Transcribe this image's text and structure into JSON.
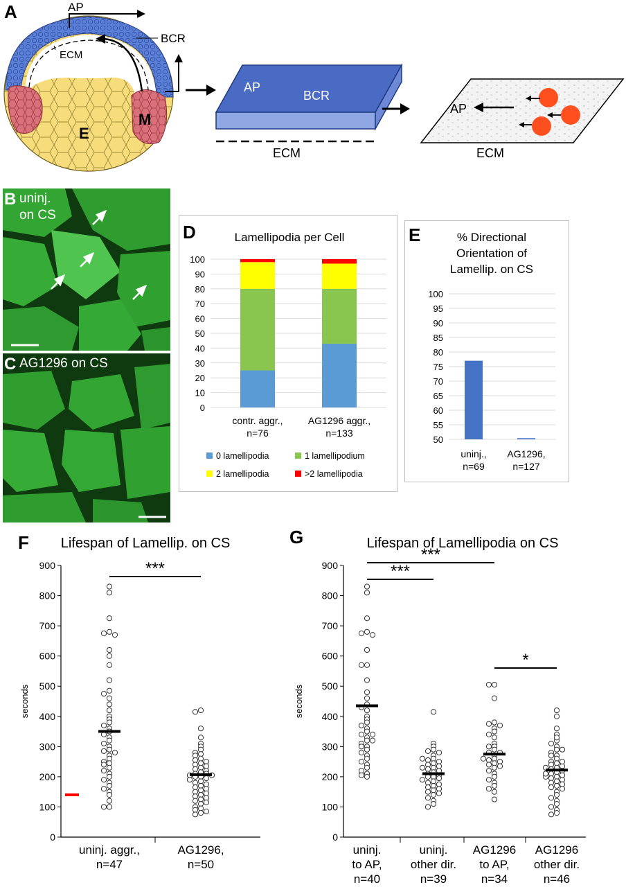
{
  "panels": {
    "A": {
      "label": "A",
      "texts": {
        "ap_top": "AP",
        "bcr": "BCR",
        "ecm": "ECM",
        "e": "E",
        "m": "M",
        "box_ap": "AP",
        "box_bcr": "BCR",
        "box_ecm": "ECM",
        "sheet_ap": "AP",
        "sheet_ecm": "ECM"
      }
    },
    "B": {
      "label": "B",
      "caption_line1": "uninj.",
      "caption_line2": "on CS"
    },
    "C": {
      "label": "C",
      "caption": "AG1296 on CS"
    },
    "D": {
      "label": "D"
    },
    "E": {
      "label": "E"
    },
    "F": {
      "label": "F"
    },
    "G": {
      "label": "G"
    }
  },
  "chart_data": [
    {
      "id": "D",
      "type": "bar",
      "stacked": true,
      "title": "Lamellipodia per Cell",
      "categories": [
        "contr. aggr.,\nn=76",
        "AG1296 aggr.,\nn=133"
      ],
      "ylim": [
        0,
        100
      ],
      "yticks": [
        0,
        10,
        20,
        30,
        40,
        50,
        60,
        70,
        80,
        90,
        100
      ],
      "grid": true,
      "legend": "bottom",
      "series": [
        {
          "name": "0 lamellipodia",
          "color": "#5b9bd5",
          "values": [
            25,
            43
          ]
        },
        {
          "name": "1 lamellipodium",
          "color": "#8ac64f",
          "values": [
            55,
            37
          ]
        },
        {
          "name": "2 lamellipodia",
          "color": "#ffff00",
          "values": [
            18,
            17
          ]
        },
        {
          "name": ">2 lamellipodia",
          "color": "#ff0000",
          "values": [
            2,
            3
          ]
        }
      ]
    },
    {
      "id": "E",
      "type": "bar",
      "title": "% Directional\nOrientation of\nLamellip. on CS",
      "categories": [
        "uninj.,\nn=69",
        "AG1296,\nn=127"
      ],
      "values": [
        77,
        50.4
      ],
      "color": "#4472c4",
      "ylim": [
        50,
        100
      ],
      "yticks": [
        50,
        55,
        60,
        65,
        70,
        75,
        80,
        85,
        90,
        95,
        100
      ],
      "grid": true
    },
    {
      "id": "F",
      "type": "scatter",
      "title": "Lifespan of Lamellip. on CS",
      "ylabel": "seconds",
      "ylim": [
        0,
        900
      ],
      "yticks": [
        0,
        100,
        200,
        300,
        400,
        500,
        600,
        700,
        800,
        900
      ],
      "categories": [
        "uninj. aggr.,\nn=47",
        "AG1296,\nn=50"
      ],
      "means": [
        350,
        207
      ],
      "significance": [
        {
          "between": [
            0,
            1
          ],
          "label": "***"
        }
      ],
      "series": [
        {
          "values": [
            830,
            810,
            725,
            680,
            675,
            670,
            620,
            600,
            570,
            520,
            485,
            475,
            460,
            440,
            420,
            400,
            390,
            380,
            370,
            360,
            350,
            340,
            330,
            320,
            310,
            300,
            290,
            285,
            280,
            270,
            260,
            250,
            245,
            240,
            230,
            220,
            210,
            200,
            190,
            180,
            170,
            160,
            150,
            140,
            120,
            100,
            100
          ]
        },
        {
          "values": [
            420,
            415,
            360,
            330,
            310,
            300,
            290,
            280,
            275,
            270,
            260,
            255,
            250,
            245,
            240,
            235,
            230,
            225,
            220,
            215,
            210,
            210,
            205,
            205,
            200,
            200,
            195,
            190,
            185,
            180,
            175,
            170,
            165,
            160,
            155,
            150,
            145,
            140,
            135,
            130,
            125,
            120,
            115,
            110,
            100,
            95,
            90,
            85,
            80,
            75
          ]
        }
      ],
      "marker": {
        "value": 140,
        "color": "#ff0000"
      }
    },
    {
      "id": "G",
      "type": "scatter",
      "title": "Lifespan of Lamellipodia on CS",
      "ylabel": "seconds",
      "ylim": [
        0,
        900
      ],
      "yticks": [
        0,
        100,
        200,
        300,
        400,
        500,
        600,
        700,
        800,
        900
      ],
      "categories": [
        "uninj.\nto AP,\nn=40",
        "uninj.\nother dir.\nn=39",
        "AG1296\nto AP,\nn=34",
        "AG1296\nother dir.\nn=46"
      ],
      "means": [
        435,
        210,
        275,
        222
      ],
      "significance": [
        {
          "between": [
            0,
            1
          ],
          "label": "***"
        },
        {
          "between": [
            0,
            2
          ],
          "label": "***"
        },
        {
          "between": [
            2,
            3
          ],
          "label": "*"
        }
      ],
      "series": [
        {
          "values": [
            830,
            810,
            725,
            680,
            675,
            670,
            620,
            570,
            570,
            520,
            480,
            460,
            440,
            430,
            420,
            400,
            390,
            380,
            370,
            360,
            350,
            340,
            330,
            320,
            310,
            300,
            290,
            280,
            270,
            260,
            250,
            240,
            230,
            220,
            210,
            205,
            200,
            300,
            320,
            340
          ]
        },
        {
          "values": [
            415,
            310,
            300,
            290,
            285,
            280,
            270,
            260,
            255,
            250,
            245,
            240,
            235,
            230,
            225,
            220,
            215,
            210,
            205,
            200,
            200,
            195,
            190,
            185,
            180,
            175,
            170,
            165,
            160,
            155,
            150,
            145,
            140,
            130,
            120,
            110,
            100,
            230,
            260
          ]
        },
        {
          "values": [
            505,
            505,
            460,
            380,
            375,
            370,
            360,
            350,
            340,
            330,
            310,
            300,
            290,
            280,
            270,
            260,
            255,
            250,
            245,
            240,
            235,
            230,
            220,
            210,
            200,
            190,
            180,
            170,
            160,
            150,
            125,
            300,
            280,
            260
          ]
        },
        {
          "values": [
            420,
            400,
            360,
            340,
            320,
            300,
            290,
            280,
            270,
            260,
            250,
            245,
            240,
            235,
            230,
            225,
            220,
            215,
            210,
            205,
            200,
            195,
            190,
            185,
            180,
            175,
            170,
            165,
            160,
            150,
            140,
            130,
            120,
            110,
            100,
            90,
            80,
            75,
            200,
            210,
            230,
            250,
            270,
            290,
            310,
            330
          ]
        }
      ]
    }
  ]
}
